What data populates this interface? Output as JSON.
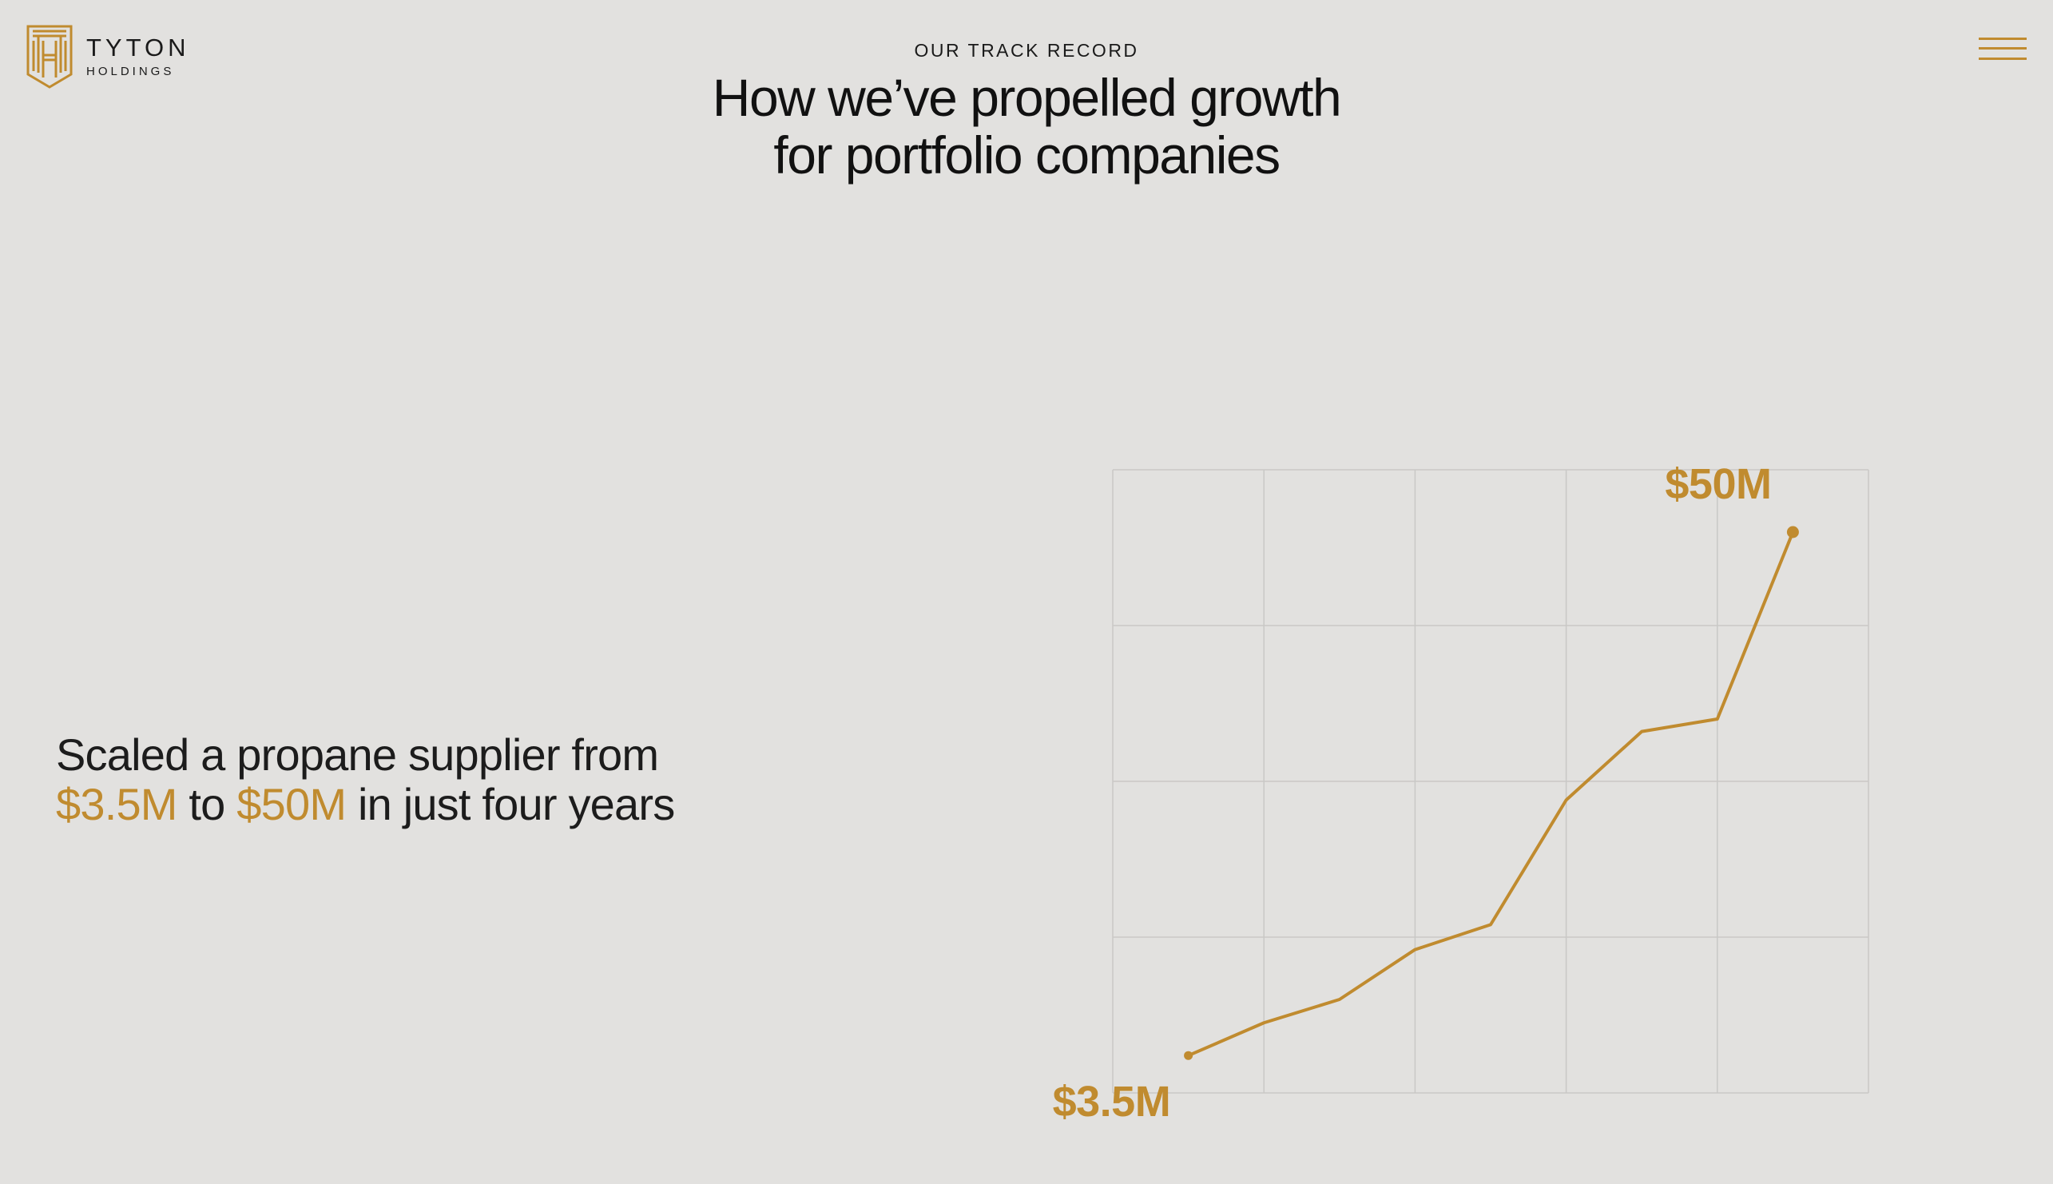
{
  "brand": {
    "name": "TYTON",
    "subtitle": "HOLDINGS",
    "accent_color": "#c08b2f",
    "logo_icon": "tyton-monogram-icon"
  },
  "nav": {
    "menu_icon": "hamburger-menu-icon"
  },
  "header": {
    "eyebrow": "OUR TRACK RECORD",
    "headline_line1": "How we’ve propelled growth",
    "headline_line2": "for portfolio companies"
  },
  "statement": {
    "line1": "Scaled a propane supplier from",
    "start_value": "$3.5M",
    "connector": "to",
    "end_value": "$50M",
    "tail": "in just four years"
  },
  "chart_data": {
    "type": "line",
    "start_label": "$3.5M",
    "end_label": "$50M",
    "grid": true,
    "ylim": [
      0,
      4
    ],
    "xlim": [
      0,
      5
    ],
    "series": [
      {
        "x": [
          0.5,
          1,
          1.5,
          2,
          2.5,
          3,
          3.5,
          4,
          4.5
        ],
        "values": [
          0.24,
          0.45,
          0.6,
          0.92,
          1.08,
          1.88,
          2.32,
          2.4,
          3.6
        ]
      }
    ],
    "line_color": "#c08b2f",
    "grid_color": "#c9c8c6"
  }
}
